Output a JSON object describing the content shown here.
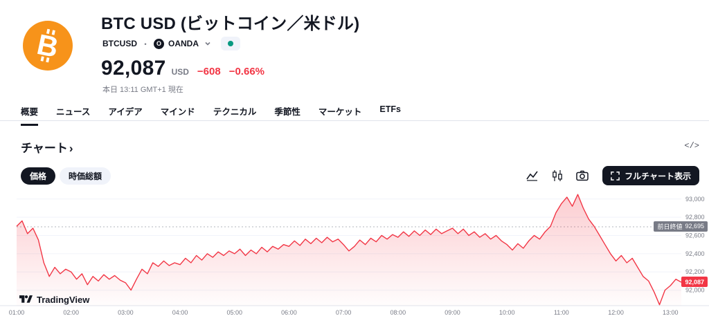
{
  "header": {
    "title": "BTC USD (ビットコイン／米ドル)",
    "symbol": "BTCUSD",
    "separator": "・",
    "exchange": "OANDA",
    "price": "92,087",
    "currency": "USD",
    "change_abs": "−608",
    "change_pct": "−0.66%",
    "timestamp": "本日 13:11 GMT+1 現在"
  },
  "tabs": [
    {
      "label": "概要"
    },
    {
      "label": "ニュース"
    },
    {
      "label": "アイデア"
    },
    {
      "label": "マインド"
    },
    {
      "label": "テクニカル"
    },
    {
      "label": "季節性"
    },
    {
      "label": "マーケット"
    },
    {
      "label": "ETFs"
    }
  ],
  "section": {
    "title": "チャート",
    "chevron": "›",
    "code_icon_glyph": "</>"
  },
  "toolbar": {
    "price_label": "価格",
    "marketcap_label": "時価総額",
    "fullchart_label": "フルチャート表示"
  },
  "watermark": "TradingView",
  "colors": {
    "accent_red": "#F23645",
    "brand_orange": "#F7931A",
    "status_green": "#089981",
    "grid": "#f0f3fa",
    "axis_text": "#787b86"
  },
  "chart_data": {
    "type": "area",
    "title": "BTC USD intraday price",
    "x_start_minute": 60,
    "x_interval_minute": 6,
    "values": [
      92700,
      92760,
      92620,
      92680,
      92550,
      92300,
      92150,
      92250,
      92180,
      92230,
      92200,
      92120,
      92180,
      92060,
      92150,
      92100,
      92170,
      92120,
      92160,
      92110,
      92080,
      92000,
      92120,
      92230,
      92180,
      92300,
      92260,
      92320,
      92270,
      92300,
      92280,
      92350,
      92300,
      92380,
      92330,
      92400,
      92360,
      92420,
      92380,
      92430,
      92400,
      92450,
      92380,
      92440,
      92400,
      92470,
      92420,
      92480,
      92450,
      92500,
      92480,
      92540,
      92490,
      92560,
      92510,
      92570,
      92520,
      92580,
      92530,
      92560,
      92500,
      92430,
      92480,
      92550,
      92500,
      92570,
      92530,
      92600,
      92560,
      92610,
      92580,
      92640,
      92590,
      92650,
      92600,
      92660,
      92610,
      92670,
      92620,
      92650,
      92680,
      92620,
      92670,
      92600,
      92640,
      92580,
      92620,
      92560,
      92600,
      92540,
      92500,
      92440,
      92510,
      92460,
      92540,
      92600,
      92560,
      92640,
      92700,
      92850,
      92950,
      93020,
      92920,
      93050,
      92900,
      92780,
      92700,
      92600,
      92500,
      92400,
      92320,
      92380,
      92300,
      92350,
      92250,
      92150,
      92100,
      91980,
      91840,
      92000,
      92050,
      92120,
      92087
    ],
    "x_ticks": [
      {
        "minute": 60,
        "label": "01:00"
      },
      {
        "minute": 120,
        "label": "02:00"
      },
      {
        "minute": 180,
        "label": "03:00"
      },
      {
        "minute": 240,
        "label": "04:00"
      },
      {
        "minute": 300,
        "label": "05:00"
      },
      {
        "minute": 360,
        "label": "06:00"
      },
      {
        "minute": 420,
        "label": "07:00"
      },
      {
        "minute": 480,
        "label": "08:00"
      },
      {
        "minute": 540,
        "label": "09:00"
      },
      {
        "minute": 600,
        "label": "10:00"
      },
      {
        "minute": 660,
        "label": "11:00"
      },
      {
        "minute": 720,
        "label": "12:00"
      },
      {
        "minute": 780,
        "label": "13:00"
      }
    ],
    "y_ticks": [
      {
        "value": 93000,
        "label": "93,000"
      },
      {
        "value": 92800,
        "label": "92,800"
      },
      {
        "value": 92600,
        "label": "92,600"
      },
      {
        "value": 92400,
        "label": "92,400"
      },
      {
        "value": 92200,
        "label": "92,200"
      },
      {
        "value": 92000,
        "label": "92,000"
      }
    ],
    "y_domain": [
      91830,
      93150
    ],
    "prev_close": {
      "label": "前日終値",
      "value": 92695,
      "display": "92,695"
    },
    "last": {
      "value": 92087,
      "display": "92,087"
    },
    "line_color": "#F23645",
    "fill_top": "rgba(242,54,69,0.25)",
    "fill_bottom": "rgba(242,54,69,0.01)",
    "legend": "none",
    "grid": "horizontal"
  }
}
